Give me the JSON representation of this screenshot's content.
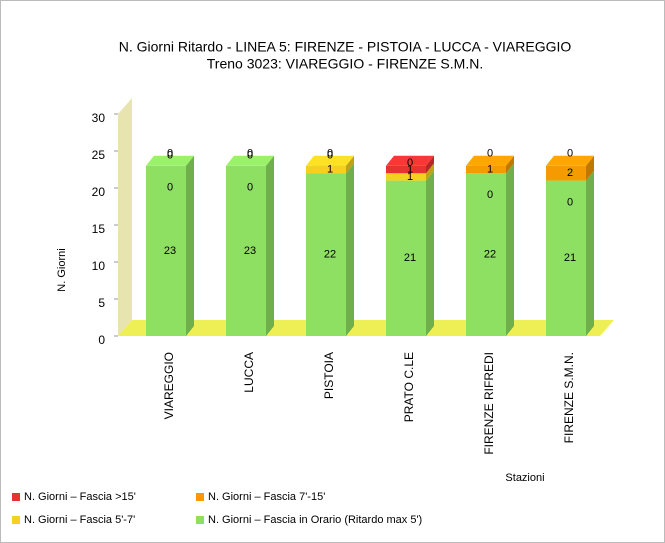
{
  "chart_data": {
    "type": "bar3d_stacked",
    "title": "N. Giorni Ritardo - LINEA 5: FIRENZE - PISTOIA - LUCCA - VIAREGGIO",
    "subtitle": "Treno 3023: VIAREGGIO - FIRENZE S.M.N.",
    "y_label": "N. Giorni",
    "x_label": "Stazioni",
    "categories": [
      "VIAREGGIO",
      "LUCCA",
      "PISTOIA",
      "PRATO C.LE",
      "FIRENZE RIFREDI",
      "FIRENZE S.M.N."
    ],
    "series": [
      {
        "name": "N. Giorni – Fascia >15'",
        "color": "#e83232",
        "values": [
          0,
          0,
          0,
          1,
          0,
          0
        ]
      },
      {
        "name": "N. Giorni – Fascia 7'-15'",
        "color": "#f59a00",
        "values": [
          0,
          0,
          0,
          0,
          1,
          2
        ]
      },
      {
        "name": "N. Giorni – Fascia 5'-7'",
        "color": "#f5d020",
        "values": [
          0,
          0,
          1,
          1,
          0,
          0
        ]
      },
      {
        "name": "N. Giorni – Fascia in Orario (Ritardo max 5')",
        "color": "#8ee062",
        "values": [
          23,
          23,
          22,
          21,
          22,
          21
        ]
      }
    ],
    "ylim": [
      0,
      30
    ],
    "yticks": [
      0,
      5,
      10,
      15,
      20,
      25,
      30
    ]
  }
}
